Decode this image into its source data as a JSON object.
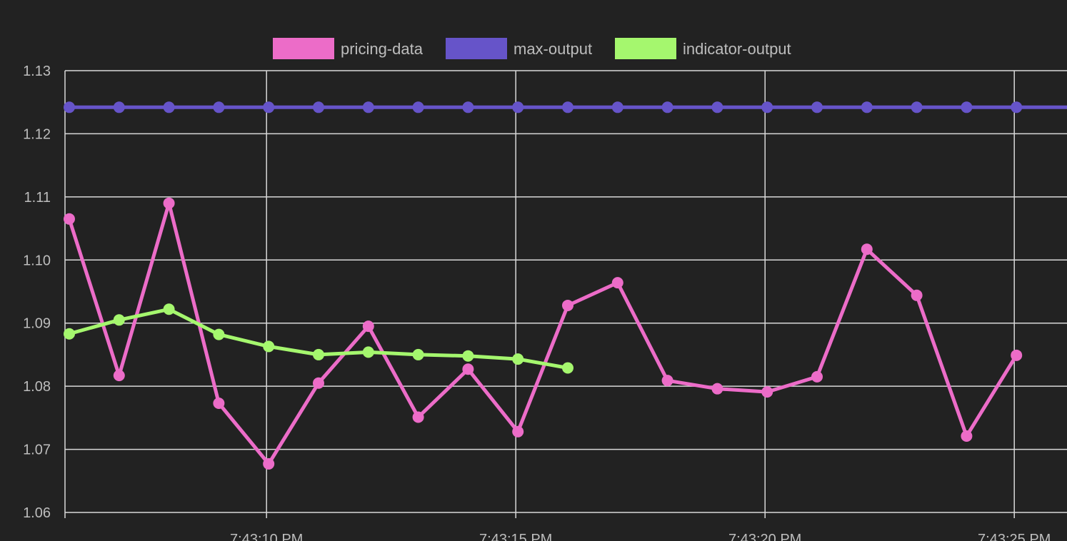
{
  "chart_data": {
    "type": "line",
    "x_labels": [
      "7:43:10 PM",
      "7:43:15 PM",
      "7:43:20 PM",
      "7:43:25 PM"
    ],
    "x_range_seconds": [
      6,
      25
    ],
    "y_ticks": [
      "1.13",
      "1.12",
      "1.11",
      "1.10",
      "1.09",
      "1.08",
      "1.07",
      "1.06"
    ],
    "ylim": [
      1.06,
      1.13
    ],
    "grid": true,
    "legend_position": "top-center",
    "series": [
      {
        "name": "pricing-data",
        "color": "#ec6cc8",
        "x": [
          6,
          7,
          8,
          9,
          10,
          11,
          12,
          13,
          14,
          15,
          16,
          17,
          18,
          19,
          20,
          21,
          22,
          23,
          24,
          25
        ],
        "values": [
          1.1065,
          1.0817,
          1.109,
          1.0773,
          1.0677,
          1.0805,
          1.0895,
          1.0751,
          1.0827,
          1.0728,
          1.0928,
          1.0964,
          1.0809,
          1.0796,
          1.0791,
          1.0815,
          1.1017,
          1.0944,
          1.0721,
          1.0849
        ]
      },
      {
        "name": "max-output",
        "color": "#6654c9",
        "x": [
          6,
          7,
          8,
          9,
          10,
          11,
          12,
          13,
          14,
          15,
          16,
          17,
          18,
          19,
          20,
          21,
          22,
          23,
          24,
          25
        ],
        "values": [
          1.1242,
          1.1242,
          1.1242,
          1.1242,
          1.1242,
          1.1242,
          1.1242,
          1.1242,
          1.1242,
          1.1242,
          1.1242,
          1.1242,
          1.1242,
          1.1242,
          1.1242,
          1.1242,
          1.1242,
          1.1242,
          1.1242,
          1.1242
        ],
        "extends_to_edge": true
      },
      {
        "name": "indicator-output",
        "color": "#a5f76e",
        "x": [
          6,
          7,
          8,
          9,
          10,
          11,
          12,
          13,
          14,
          15,
          16
        ],
        "values": [
          1.0883,
          1.0905,
          1.0922,
          1.0882,
          1.0863,
          1.085,
          1.0854,
          1.085,
          1.0848,
          1.0843,
          1.0829
        ]
      }
    ]
  }
}
